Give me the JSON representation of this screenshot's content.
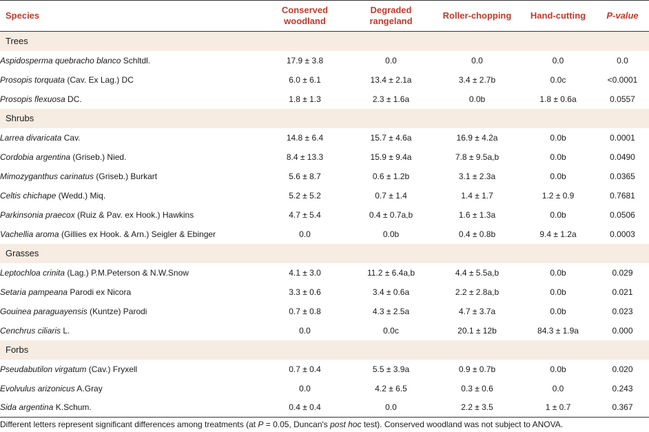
{
  "headers": {
    "species": "Species",
    "conserved_a": "Conserved",
    "conserved_b": "woodland",
    "degraded_a": "Degraded",
    "degraded_b": "rangeland",
    "roller": "Roller-chopping",
    "hand": "Hand-cutting",
    "pvalue": "P-value"
  },
  "groups": {
    "trees": "Trees",
    "shrubs": "Shrubs",
    "grasses": "Grasses",
    "forbs": "Forbs"
  },
  "rows": [
    {
      "sci": "Aspidosperma quebracho blanco",
      "auth": " Schltdl.",
      "v": [
        "17.9 ± 3.8",
        "0.0",
        "0.0",
        "0.0",
        "0.0"
      ]
    },
    {
      "sci": "Prosopis torquata",
      "auth": " (Cav. Ex Lag.) DC",
      "v": [
        "6.0 ± 6.1",
        "13.4 ± 2.1a",
        "3.4 ± 2.7b",
        "0.0c",
        "<0.0001"
      ]
    },
    {
      "sci": "Prosopis flexuosa",
      "auth": " DC.",
      "v": [
        "1.8 ± 1.3",
        "2.3 ± 1.6a",
        "0.0b",
        "1.8 ± 0.6a",
        "0.0557"
      ]
    },
    {
      "sci": "Larrea divaricata",
      "auth": " Cav.",
      "v": [
        "14.8 ± 6.4",
        "15.7 ± 4.6a",
        "16.9 ± 4.2a",
        "0.0b",
        "0.0001"
      ]
    },
    {
      "sci": "Cordobia argentina",
      "auth": " (Griseb.) Nied.",
      "v": [
        "8.4 ± 13.3",
        "15.9 ± 9.4a",
        "7.8 ± 9.5a,b",
        "0.0b",
        "0.0490"
      ]
    },
    {
      "sci": "Mimozyganthus carinatus",
      "auth": " (Griseb.) Burkart",
      "v": [
        "5.6 ± 8.7",
        "0.6 ± 1.2b",
        "3.1 ± 2.3a",
        "0.0b",
        "0.0365"
      ]
    },
    {
      "sci": "Celtis chichape",
      "auth": " (Wedd.) Miq.",
      "v": [
        "5.2 ± 5.2",
        "0.7 ± 1.4",
        "1.4 ± 1.7",
        "1.2 ± 0.9",
        "0.7681"
      ]
    },
    {
      "sci": "Parkinsonia praecox",
      "auth": " (Ruiz & Pav. ex Hook.) Hawkins",
      "v": [
        "4.7 ± 5.4",
        "0.4 ± 0.7a,b",
        "1.6 ± 1.3a",
        "0.0b",
        "0.0506"
      ]
    },
    {
      "sci": "Vachellia aroma",
      "auth": " (Gillies ex Hook. & Arn.) Seigler & Ebinger",
      "v": [
        "0.0",
        "0.0b",
        "0.4 ± 0.8b",
        "9.4 ± 1.2a",
        "0.0003"
      ]
    },
    {
      "sci": "Leptochloa crinita",
      "auth": " (Lag.) P.M.Peterson & N.W.Snow",
      "v": [
        "4.1 ± 3.0",
        "11.2 ± 6.4a,b",
        "4.4 ± 5.5a,b",
        "0.0b",
        "0.029"
      ]
    },
    {
      "sci": "Setaria pampeana",
      "auth": " Parodi ex Nicora",
      "v": [
        "3.3 ± 0.6",
        "3.4 ± 0.6a",
        "2.2 ± 2.8a,b",
        "0.0b",
        "0.021"
      ]
    },
    {
      "sci": "Gouinea paraguayensis",
      "auth": " (Kuntze) Parodi",
      "v": [
        "0.7 ± 0.8",
        "4.3 ± 2.5a",
        "4.7 ± 3.7a",
        "0.0b",
        "0.023"
      ]
    },
    {
      "sci": "Cenchrus ciliaris",
      "auth": " L.",
      "v": [
        "0.0",
        "0.0c",
        "20.1 ± 12b",
        "84.3 ± 1.9a",
        "0.000"
      ]
    },
    {
      "sci": "Pseudabutilon virgatum",
      "auth": " (Cav.) Fryxell",
      "v": [
        "0.7 ± 0.4",
        "5.5 ± 3.9a",
        "0.9 ± 0.7b",
        "0.0b",
        "0.020"
      ]
    },
    {
      "sci": "Evolvulus arizonicus",
      "auth": " A.Gray",
      "v": [
        "0.0",
        "4.2 ± 6.5",
        "0.3 ± 0.6",
        "0.0",
        "0.243"
      ]
    },
    {
      "sci": "Sida argentina",
      "auth": " K.Schum.",
      "v": [
        "0.4 ± 0.4",
        "0.0",
        "2.2 ± 3.5",
        "1 ± 0.7",
        "0.367"
      ]
    }
  ],
  "footnote": {
    "p1": "Different letters represent significant differences among treatments (at ",
    "p2": "P",
    "p3": " = 0.05, Duncan's ",
    "p4": "post hoc",
    "p5": " test). Conserved woodland was not subject to ANOVA."
  }
}
